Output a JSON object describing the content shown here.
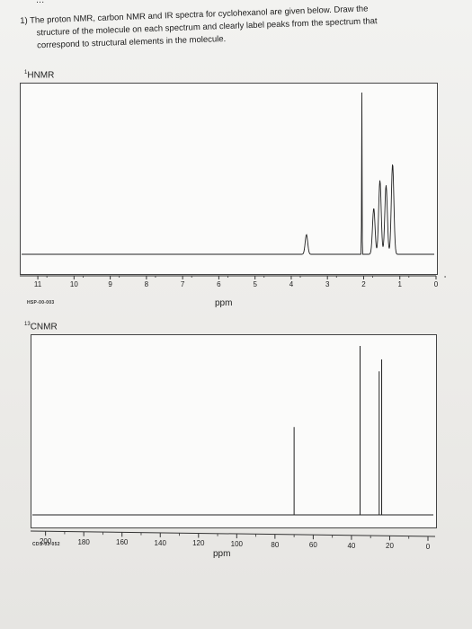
{
  "header_fragment": "...",
  "question": {
    "line1": "1) The proton NMR, carbon NMR and IR spectra for cyclohexanol are given below. Draw the",
    "line2": "structure of the molecule on each spectrum and clearly label peaks from the spectrum that",
    "line3": "correspond to structural elements in the molecule."
  },
  "hnmr": {
    "label_sup": "1",
    "label": "HNMR",
    "ticks": [
      "11",
      "10",
      "9",
      "8",
      "7",
      "6",
      "5",
      "4",
      "3",
      "2",
      "1",
      "0"
    ],
    "code": "HSP-00-003",
    "xlabel": "ppm"
  },
  "cnmr": {
    "label_sup": "13",
    "label": "CNMR",
    "ticks": [
      "200",
      "180",
      "160",
      "140",
      "120",
      "100",
      "80",
      "60",
      "40",
      "20",
      "0"
    ],
    "code": "CDS-03-052",
    "xlabel": "ppm"
  },
  "chart_data": [
    {
      "type": "line",
      "title": "",
      "xlabel": "ppm",
      "xlim": [
        11.3,
        0
      ],
      "peaks_ppm": [
        3.58,
        2.05,
        1.72,
        1.55,
        1.38,
        1.2
      ],
      "relative_heights": [
        0.12,
        1.0,
        0.28,
        0.45,
        0.42,
        0.55
      ]
    },
    {
      "type": "line",
      "title": "",
      "xlabel": "ppm",
      "xlim": [
        205,
        0
      ],
      "peaks_ppm": [
        70.0,
        35.5,
        25.5,
        24.2
      ],
      "relative_heights": [
        0.52,
        1.0,
        0.85,
        0.92
      ]
    }
  ]
}
